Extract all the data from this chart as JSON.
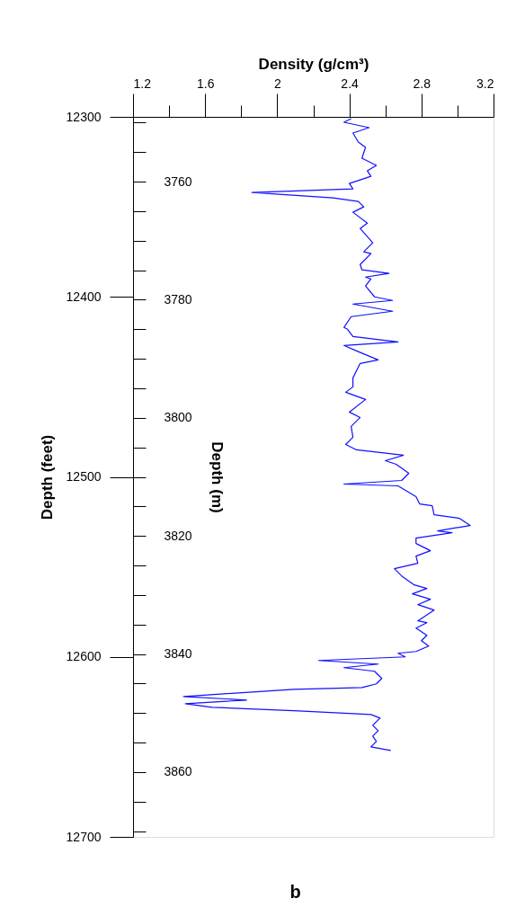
{
  "chart_data": {
    "type": "line",
    "orientation": "horizontal",
    "xlabel": "Density (g/cm³)",
    "ylabel": "Depth (feet)",
    "y2label": "Depth (m)",
    "xlim": [
      1.2,
      3.2
    ],
    "xticks": [
      1.2,
      {
        "value": 1.4,
        "label": null
      },
      1.6,
      {
        "value": 1.8,
        "label": null
      },
      2,
      {
        "value": 2.2,
        "label": null
      },
      2.4,
      {
        "value": 2.6,
        "label": null
      },
      2.8,
      {
        "value": 3.0,
        "label": null
      },
      3.2
    ],
    "ylim": [
      12700,
      12300
    ],
    "yticks": [
      12300,
      12400,
      12500,
      12600,
      12700
    ],
    "y2lim": [
      3870.96,
      3749.04
    ],
    "y2ticks": [
      {
        "value": 3750,
        "label": null
      },
      {
        "value": 3755,
        "label": null
      },
      3760,
      {
        "value": 3765,
        "label": null
      },
      {
        "value": 3770,
        "label": null
      },
      {
        "value": 3775,
        "label": null
      },
      3780,
      {
        "value": 3785,
        "label": null
      },
      {
        "value": 3790,
        "label": null
      },
      {
        "value": 3795,
        "label": null
      },
      3800,
      {
        "value": 3805,
        "label": null
      },
      {
        "value": 3810,
        "label": null
      },
      {
        "value": 3815,
        "label": null
      },
      3820,
      {
        "value": 3825,
        "label": null
      },
      {
        "value": 3830,
        "label": null
      },
      {
        "value": 3835,
        "label": null
      },
      3840,
      {
        "value": 3845,
        "label": null
      },
      {
        "value": 3850,
        "label": null
      },
      {
        "value": 3855,
        "label": null
      },
      3860,
      {
        "value": 3865,
        "label": null
      },
      {
        "value": 3870,
        "label": null
      }
    ],
    "grid": false,
    "marker": "none",
    "line_style": "solid",
    "annotations": [
      "b"
    ],
    "series": [
      {
        "color": "#1010ff",
        "x": [
          12301,
          12303,
          12306,
          12309,
          12314,
          12317,
          12323,
          12327,
          12330,
          12333,
          12337,
          12340,
          12342,
          12345,
          12347,
          12350,
          12353,
          12359,
          12362,
          12370,
          12375,
          12376,
          12382,
          12385,
          12387,
          12389,
          12390,
          12394,
          12400,
          12402,
          12404,
          12408,
          12411,
          12417,
          12418,
          12422,
          12425,
          12427,
          12430,
          12435,
          12437,
          12445,
          12450,
          12453,
          12457,
          12464,
          12467,
          12472,
          12478,
          12482,
          12485,
          12488,
          12491,
          12493,
          12498,
          12502,
          12504,
          12505,
          12511,
          12515,
          12516,
          12521,
          12523,
          12527,
          12530,
          12531,
          12534,
          12537,
          12541,
          12544,
          12548,
          12551,
          12555,
          12560,
          12562,
          12565,
          12568,
          12571,
          12574,
          12580,
          12581,
          12584,
          12588,
          12591,
          12594,
          12597,
          12598,
          12600,
          12602,
          12604,
          12606,
          12608,
          12612,
          12615,
          12617,
          12618,
          12622,
          12624,
          12626,
          12628,
          12630,
          12632,
          12634,
          12638,
          12641,
          12644,
          12647,
          12650,
          12652
        ],
        "values": [
          2.41,
          2.37,
          2.51,
          2.42,
          2.45,
          2.49,
          2.47,
          2.55,
          2.5,
          2.52,
          2.4,
          2.42,
          1.86,
          2.31,
          2.45,
          2.48,
          2.42,
          2.5,
          2.46,
          2.53,
          2.48,
          2.52,
          2.46,
          2.47,
          2.62,
          2.49,
          2.52,
          2.49,
          2.54,
          2.64,
          2.42,
          2.64,
          2.41,
          2.37,
          2.39,
          2.42,
          2.67,
          2.37,
          2.44,
          2.56,
          2.46,
          2.42,
          2.42,
          2.38,
          2.49,
          2.4,
          2.46,
          2.41,
          2.42,
          2.38,
          2.44,
          2.7,
          2.6,
          2.66,
          2.73,
          2.69,
          2.37,
          2.67,
          2.77,
          2.79,
          2.86,
          2.87,
          3.01,
          3.07,
          2.89,
          2.97,
          2.77,
          2.77,
          2.85,
          2.77,
          2.78,
          2.65,
          2.69,
          2.76,
          2.83,
          2.75,
          2.85,
          2.78,
          2.87,
          2.78,
          2.83,
          2.77,
          2.83,
          2.8,
          2.84,
          2.77,
          2.67,
          2.71,
          2.23,
          2.56,
          2.37,
          2.54,
          2.58,
          2.55,
          2.47,
          2.09,
          1.48,
          1.83,
          1.49,
          1.64,
          2.12,
          2.52,
          2.57,
          2.53,
          2.56,
          2.53,
          2.55,
          2.52,
          2.63
        ]
      }
    ]
  }
}
